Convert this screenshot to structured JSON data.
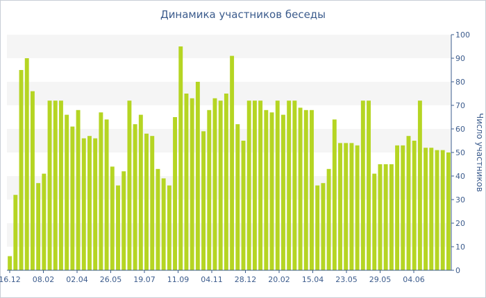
{
  "chart_data": {
    "type": "bar",
    "title": "Динамика участников беседы",
    "ylabel": "Число участников",
    "xlabel": "",
    "ylim": [
      0,
      100
    ],
    "yticks": [
      0,
      10,
      20,
      30,
      40,
      50,
      60,
      70,
      80,
      90,
      100
    ],
    "xtick_labels": [
      "16.12",
      "08.02",
      "02.04",
      "26.05",
      "19.07",
      "11.09",
      "04.11",
      "28.12",
      "20.02",
      "15.04",
      "23.05",
      "29.05",
      "04.06"
    ],
    "grid": "alternating horizontal bands",
    "y_axis_position": "right",
    "bar_color": "#b5d523",
    "band_color": "#f5f5f5",
    "values": [
      6,
      32,
      85,
      90,
      76,
      37,
      41,
      72,
      72,
      72,
      66,
      61,
      68,
      56,
      57,
      56,
      67,
      64,
      44,
      36,
      42,
      72,
      62,
      66,
      58,
      57,
      43,
      39,
      36,
      65,
      95,
      75,
      73,
      80,
      59,
      68,
      73,
      72,
      75,
      91,
      62,
      55,
      72,
      72,
      72,
      68,
      67,
      72,
      66,
      72,
      72,
      69,
      68,
      68,
      36,
      37,
      43,
      64,
      54,
      54,
      54,
      53,
      72,
      72,
      41,
      45,
      45,
      45,
      53,
      53,
      57,
      55,
      72,
      52,
      52,
      51,
      51,
      50
    ]
  }
}
